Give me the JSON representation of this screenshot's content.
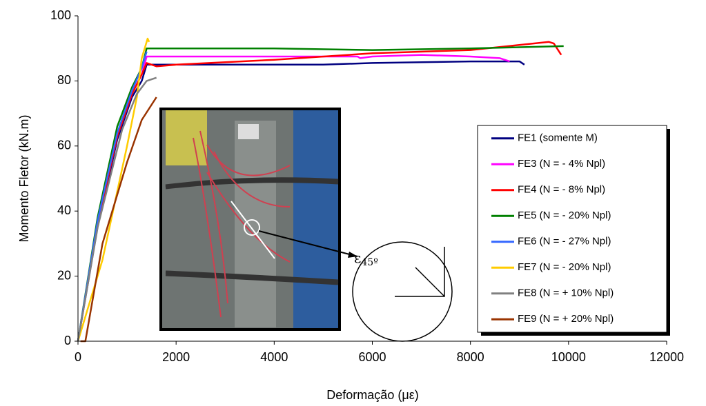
{
  "chart_data": {
    "type": "line",
    "x_label": "Deformação (με)",
    "y_label": "Momento Fletor (kN.m)",
    "xlim": [
      0,
      12000
    ],
    "xticks": [
      0,
      2000,
      4000,
      6000,
      8000,
      10000,
      12000
    ],
    "ylim": [
      0,
      100
    ],
    "yticks": [
      0,
      20,
      40,
      60,
      80,
      100
    ],
    "grid": false,
    "legend": "right",
    "annotation": {
      "symbol": "ε",
      "subscript": "45º"
    },
    "series": [
      {
        "name": "FE1 (somente M)",
        "color": "#000080",
        "x": [
          0,
          400,
          800,
          1100,
          1300,
          1400,
          3000,
          5000,
          6000,
          8000,
          9000,
          9100
        ],
        "values": [
          0,
          35,
          62,
          75,
          80,
          85,
          85,
          85,
          85.5,
          86,
          86,
          85
        ]
      },
      {
        "name": "FE3 (N = - 4% Npl)",
        "color": "#ff00ff",
        "x": [
          0,
          400,
          800,
          1100,
          1300,
          1400,
          3000,
          5700,
          5750,
          6000,
          7000,
          8000,
          8600,
          8800
        ],
        "values": [
          0,
          36,
          63,
          76,
          82,
          87.5,
          87.5,
          87.5,
          87,
          87.5,
          88,
          87.5,
          87,
          86
        ]
      },
      {
        "name": "FE4 (N = - 8% Npl)",
        "color": "#ff0000",
        "x": [
          0,
          400,
          800,
          1100,
          1300,
          1400,
          1600,
          2000,
          4000,
          6000,
          8000,
          9600,
          9700,
          9850
        ],
        "values": [
          0,
          36,
          63,
          76,
          82,
          85.5,
          84.5,
          85,
          86.5,
          88.5,
          89.5,
          92,
          91.5,
          88
        ]
      },
      {
        "name": "FE5 (N = - 20% Npl)",
        "color": "#008000",
        "x": [
          0,
          400,
          800,
          1100,
          1300,
          1400,
          4000,
          6000,
          8000,
          9900
        ],
        "values": [
          0,
          38,
          66,
          78,
          84,
          90,
          90,
          89.5,
          90,
          90.7
        ]
      },
      {
        "name": "FE6 (N = - 27% Npl)",
        "color": "#3366ff",
        "x": [
          0,
          400,
          800,
          1100,
          1300,
          1400
        ],
        "values": [
          0,
          37,
          64,
          77,
          84,
          89
        ]
      },
      {
        "name": "FE7 (N = - 20% Npl)",
        "color": "#ffcc00",
        "x": [
          0,
          500,
          1000,
          1200,
          1300,
          1420,
          1450
        ],
        "values": [
          0,
          25,
          60,
          75,
          87,
          93,
          92
        ]
      },
      {
        "name": "FE8 (N = + 10% Npl)",
        "color": "#808080",
        "x": [
          0,
          400,
          900,
          1200,
          1400,
          1600
        ],
        "values": [
          0,
          35,
          65,
          76,
          80,
          81
        ]
      },
      {
        "name": "FE9 (N = + 20% Npl)",
        "color": "#993300",
        "x": [
          50,
          150,
          500,
          1000,
          1300,
          1600
        ],
        "values": [
          0,
          0,
          30,
          55,
          68,
          75
        ]
      }
    ]
  }
}
